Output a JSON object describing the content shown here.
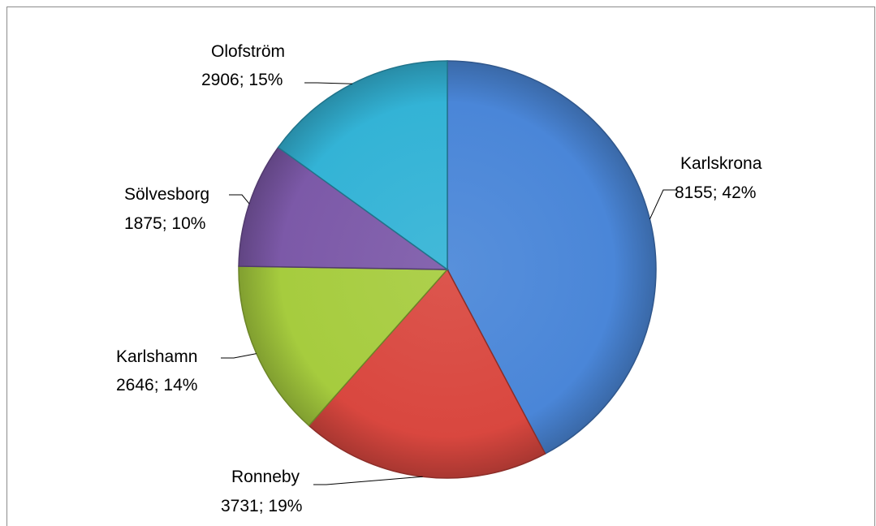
{
  "chart_data": {
    "type": "pie",
    "title": "",
    "slices": [
      {
        "label": "Karlskrona",
        "value": 8155,
        "percent": "42%",
        "display": "8155; 42%",
        "color": "#4a86d8"
      },
      {
        "label": "Ronneby",
        "value": 3731,
        "percent": "19%",
        "display": "3731; 19%",
        "color": "#d9473f"
      },
      {
        "label": "Karlshamn",
        "value": 2646,
        "percent": "14%",
        "display": "2646; 14%",
        "color": "#a6cc3e"
      },
      {
        "label": "Sölvesborg",
        "value": 1875,
        "percent": "10%",
        "display": "1875; 10%",
        "color": "#7c59a8"
      },
      {
        "label": "Olofström",
        "value": 2906,
        "percent": "15%",
        "display": "2906; 15%",
        "color": "#33b3d6"
      }
    ],
    "legend": "none",
    "start_angle": "12 o'clock",
    "direction": "clockwise"
  }
}
